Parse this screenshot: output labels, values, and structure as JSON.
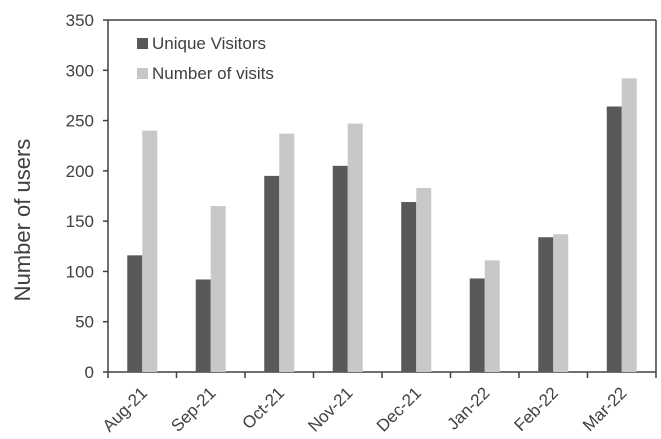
{
  "chart_data": {
    "type": "bar",
    "title": "",
    "xlabel": "",
    "ylabel": "Number of users",
    "ylim": [
      0,
      350
    ],
    "yticks": [
      0,
      50,
      100,
      150,
      200,
      250,
      300,
      350
    ],
    "grid": false,
    "legend_position": "top-left",
    "categories": [
      "Aug-21",
      "Sep-21",
      "Oct-21",
      "Nov-21",
      "Dec-21",
      "Jan-22",
      "Feb-22",
      "Mar-22"
    ],
    "series": [
      {
        "name": "Unique Visitors",
        "color": "#595959",
        "values": [
          116,
          92,
          195,
          205,
          169,
          93,
          134,
          264
        ]
      },
      {
        "name": "Number of visits",
        "color": "#c8c8c8",
        "values": [
          240,
          165,
          237,
          247,
          183,
          111,
          137,
          292
        ]
      }
    ]
  }
}
